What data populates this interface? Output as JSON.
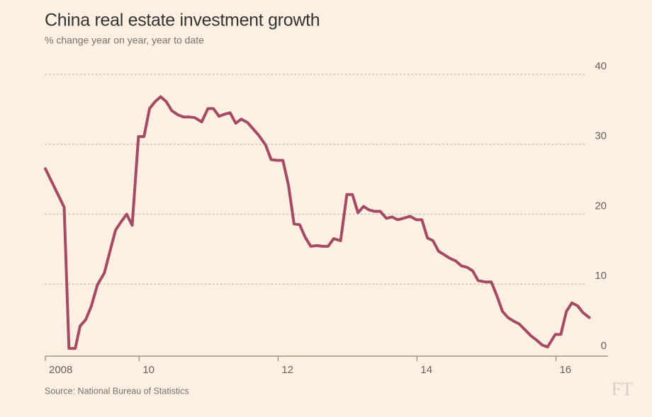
{
  "chart_data": {
    "type": "line",
    "title": "China real estate investment growth",
    "subtitle": "% change year on year, year to date",
    "source": "Source: National Bureau of Statistics",
    "logo": "FT",
    "x": [
      2008.65,
      2008.92,
      2008.99,
      2009.08,
      2009.15,
      2009.23,
      2009.31,
      2009.4,
      2009.5,
      2009.58,
      2009.66,
      2009.74,
      2009.82,
      2009.9,
      2009.99,
      2010.07,
      2010.15,
      2010.23,
      2010.31,
      2010.39,
      2010.47,
      2010.56,
      2010.64,
      2010.72,
      2010.8,
      2010.9,
      2010.99,
      2011.07,
      2011.15,
      2011.23,
      2011.31,
      2011.39,
      2011.47,
      2011.56,
      2011.64,
      2011.72,
      2011.82,
      2011.9,
      2011.99,
      2012.07,
      2012.15,
      2012.23,
      2012.31,
      2012.39,
      2012.47,
      2012.56,
      2012.64,
      2012.72,
      2012.8,
      2012.9,
      2012.99,
      2013.07,
      2013.15,
      2013.23,
      2013.31,
      2013.39,
      2013.47,
      2013.56,
      2013.64,
      2013.72,
      2013.8,
      2013.9,
      2013.99,
      2014.07,
      2014.15,
      2014.23,
      2014.31,
      2014.39,
      2014.47,
      2014.56,
      2014.64,
      2014.72,
      2014.8,
      2014.88,
      2014.99,
      2015.07,
      2015.15,
      2015.23,
      2015.31,
      2015.39,
      2015.47,
      2015.56,
      2015.64,
      2015.72,
      2015.8,
      2015.88,
      2015.99,
      2016.07,
      2016.15,
      2016.23,
      2016.31,
      2016.39,
      2016.48
    ],
    "series": [
      {
        "name": "Real estate investment growth",
        "color": "#a54a62",
        "values": [
          26.5,
          21,
          0.8,
          0.8,
          4.0,
          4.9,
          6.8,
          9.9,
          11.6,
          14.7,
          17.7,
          18.9,
          20,
          18.4,
          31.1,
          31.1,
          35.1,
          36.1,
          36.8,
          36.1,
          34.8,
          34.2,
          33.9,
          33.9,
          33.8,
          33.2,
          35.1,
          35.1,
          34.0,
          34.3,
          34.5,
          33,
          33.6,
          33.1,
          32.2,
          31.3,
          29.9,
          27.8,
          27.7,
          27.7,
          24.1,
          18.6,
          18.5,
          16.7,
          15.4,
          15.5,
          15.4,
          15.4,
          16.5,
          16.2,
          22.8,
          22.8,
          20.2,
          21.1,
          20.6,
          20.4,
          20.4,
          19.4,
          19.6,
          19.2,
          19.4,
          19.7,
          19.2,
          19.2,
          16.6,
          16.2,
          14.7,
          14.2,
          13.7,
          13.3,
          12.6,
          12.4,
          11.9,
          10.5,
          10.3,
          10.3,
          8.3,
          6.1,
          5.2,
          4.7,
          4.3,
          3.4,
          2.6,
          2.0,
          1.3,
          1.0,
          2.8,
          2.8,
          6.1,
          7.3,
          6.9,
          5.9,
          5.2
        ]
      }
    ],
    "xlim": [
      2008.65,
      2016.75
    ],
    "xticks": [
      {
        "value": 2008.65,
        "label": "2008"
      },
      {
        "value": 2010,
        "label": "10"
      },
      {
        "value": 2012,
        "label": "12"
      },
      {
        "value": 2014,
        "label": "14"
      },
      {
        "value": 2016,
        "label": "16"
      }
    ],
    "ylim": [
      0,
      40
    ],
    "yticks": [
      0,
      10,
      20,
      30,
      40
    ],
    "grid": true
  }
}
